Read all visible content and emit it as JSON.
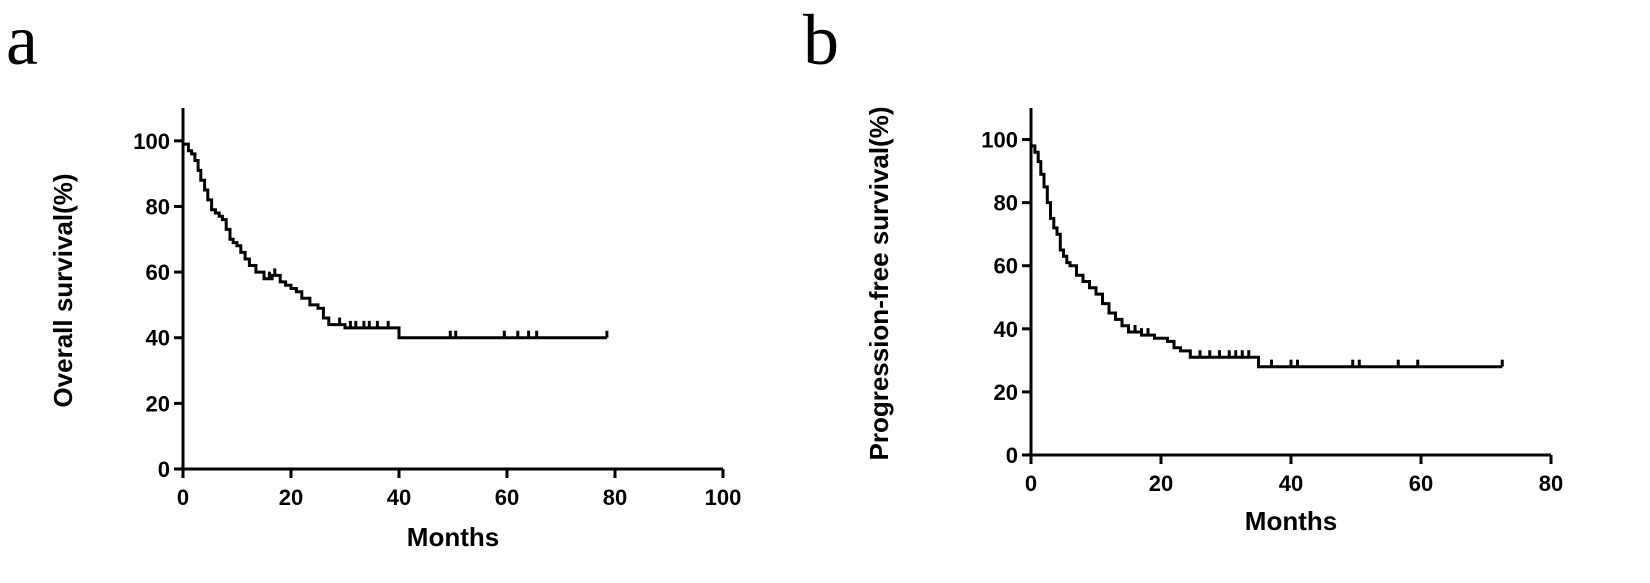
{
  "chart_data": [
    {
      "panel_label": "a",
      "type": "line",
      "subtype": "kaplan-meier",
      "xlabel": "Months",
      "ylabel": "Overall survival(%)",
      "xlim": [
        0,
        100
      ],
      "ylim": [
        0,
        110
      ],
      "xticks": [
        0,
        20,
        40,
        60,
        80,
        100
      ],
      "yticks": [
        0,
        20,
        40,
        60,
        80,
        100
      ],
      "grid": false,
      "legend": "none",
      "color": "#000000",
      "series": [
        {
          "x": [
            0,
            1,
            1.6,
            2.2,
            2.8,
            3.3,
            4,
            4.6,
            5.3,
            6,
            6.7,
            7.3,
            8,
            8.7,
            9.3,
            10,
            10.7,
            11.5,
            12.3,
            13.5,
            15,
            16.5,
            18,
            19,
            20,
            21,
            22,
            23.5,
            25,
            26,
            27,
            30,
            35,
            38,
            40,
            50,
            60,
            70,
            78.5
          ],
          "y": [
            99,
            97,
            96,
            94,
            91,
            88,
            85,
            82,
            79,
            78,
            77,
            76,
            73,
            70,
            69,
            68,
            66,
            64,
            62,
            60,
            58,
            59,
            57,
            56,
            55,
            54,
            52,
            50,
            49,
            46,
            44,
            43,
            43,
            43,
            40,
            40,
            40,
            40,
            40
          ]
        }
      ],
      "censor_x": [
        16,
        17,
        29,
        31,
        32,
        33.5,
        34.5,
        36,
        38,
        49.5,
        50.5,
        59.5,
        62,
        64,
        65.5,
        78.5
      ]
    },
    {
      "panel_label": "b",
      "type": "line",
      "subtype": "kaplan-meier",
      "xlabel": "Months",
      "ylabel": "Progression-free survival(%)",
      "xlim": [
        0,
        80
      ],
      "ylim": [
        0,
        110
      ],
      "xticks": [
        0,
        20,
        40,
        60,
        80
      ],
      "yticks": [
        0,
        20,
        40,
        60,
        80,
        100
      ],
      "grid": false,
      "legend": "none",
      "color": "#000000",
      "series": [
        {
          "x": [
            0,
            0.6,
            1.1,
            1.5,
            2,
            2.5,
            3,
            3.5,
            4,
            4.5,
            5,
            5.5,
            6,
            7,
            8,
            9,
            10,
            11,
            12,
            13,
            14,
            15,
            17,
            19,
            21,
            22,
            23,
            24.5,
            28,
            32,
            35,
            40,
            50,
            60,
            72.5
          ],
          "y": [
            98,
            96,
            93,
            89,
            85,
            80,
            75,
            72,
            70,
            65,
            63,
            61,
            60,
            57,
            55,
            53,
            51,
            48,
            45,
            43,
            41,
            39,
            38,
            37,
            36,
            34,
            33,
            31,
            31,
            31,
            28,
            28,
            28,
            28,
            28
          ]
        }
      ],
      "censor_x": [
        16,
        17,
        18,
        26,
        27.5,
        29,
        30.5,
        31.5,
        32.5,
        33.5,
        37,
        40,
        41,
        49.5,
        50.5,
        56.5,
        59.5,
        72.5
      ]
    }
  ]
}
